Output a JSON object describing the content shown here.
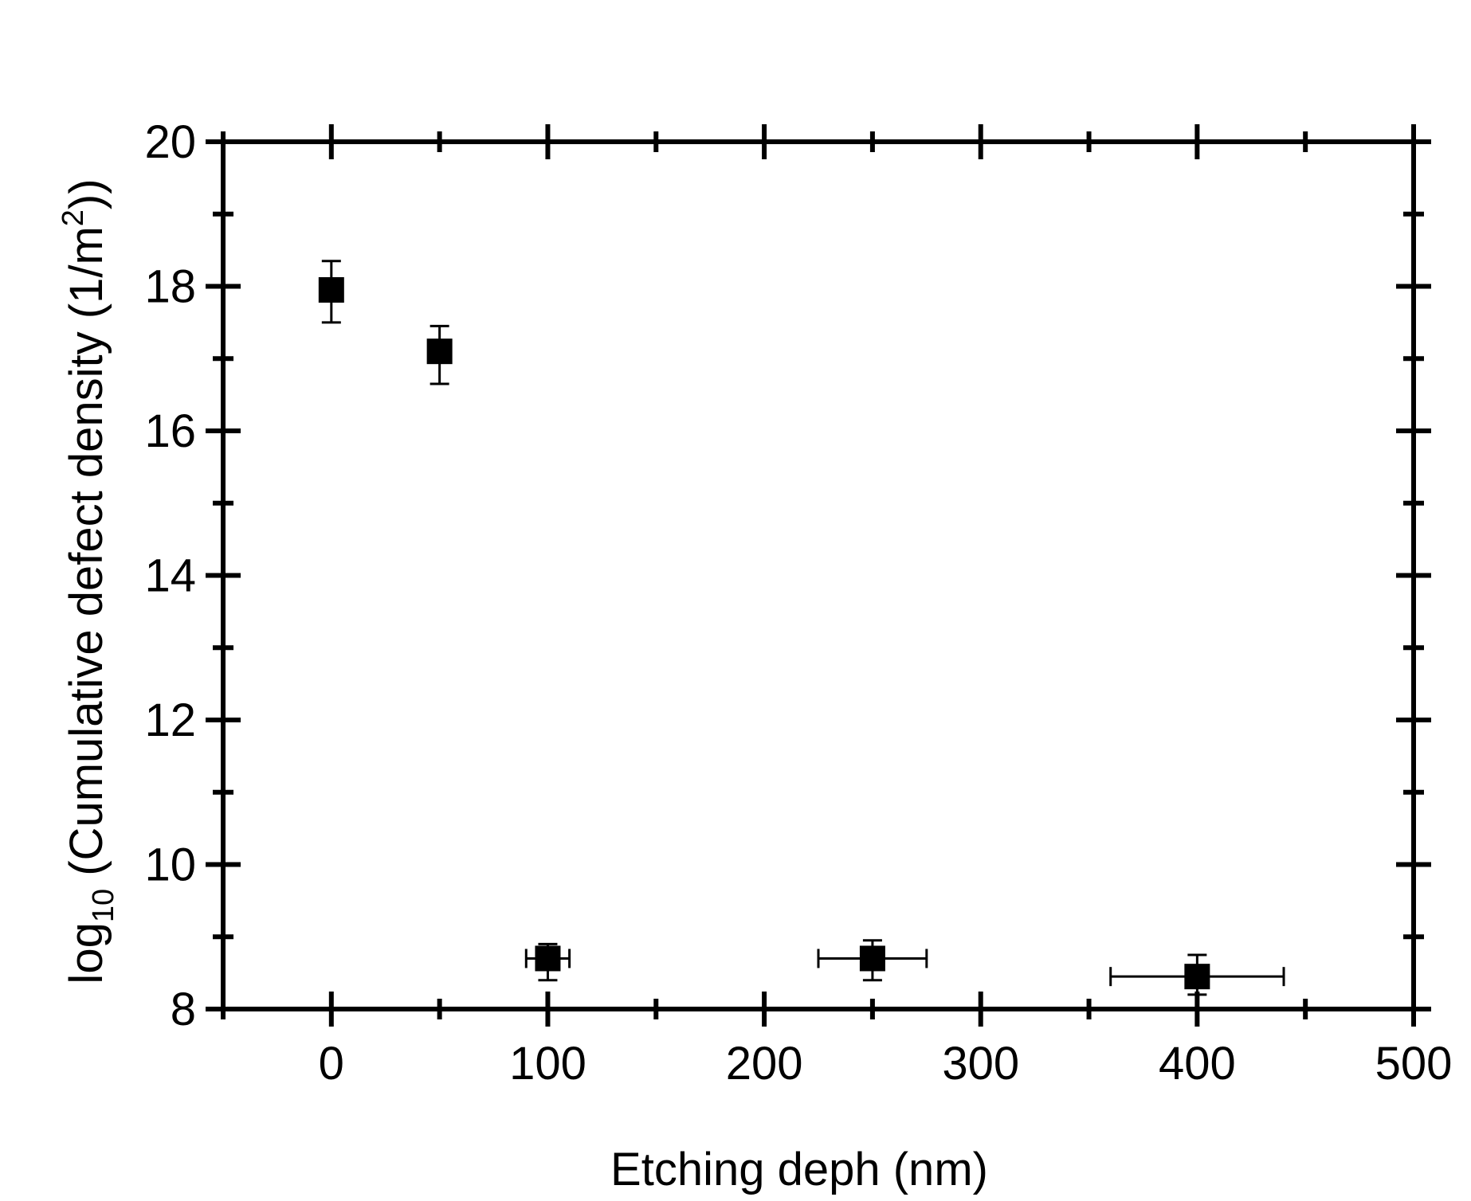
{
  "chart_data": {
    "type": "scatter",
    "xlabel": "Etching deph (nm)",
    "ylabel": {
      "prefix": "log",
      "sub": "10",
      "text": " (Cumulative defect density (1/m",
      "sup": "2",
      "suffix": "))"
    },
    "xlim": [
      -50,
      500
    ],
    "ylim": [
      8,
      20
    ],
    "x_ticks": [
      0,
      100,
      200,
      300,
      400,
      500
    ],
    "y_ticks": [
      8,
      10,
      12,
      14,
      16,
      18,
      20
    ],
    "grid": false,
    "legend": "none",
    "marker": "square",
    "color": "#000000",
    "points": [
      {
        "x": 0,
        "y": 17.95,
        "y_err_low": 17.5,
        "y_err_high": 18.35,
        "x_err_low": 0,
        "x_err_high": 0
      },
      {
        "x": 50,
        "y": 17.1,
        "y_err_low": 16.65,
        "y_err_high": 17.45,
        "x_err_low": 50,
        "x_err_high": 50
      },
      {
        "x": 100,
        "y": 8.7,
        "y_err_low": 8.4,
        "y_err_high": 8.9,
        "x_err_low": 90,
        "x_err_high": 110
      },
      {
        "x": 250,
        "y": 8.7,
        "y_err_low": 8.4,
        "y_err_high": 8.95,
        "x_err_low": 225,
        "x_err_high": 275
      },
      {
        "x": 400,
        "y": 8.45,
        "y_err_low": 8.2,
        "y_err_high": 8.75,
        "x_err_low": 360,
        "x_err_high": 440
      }
    ]
  }
}
